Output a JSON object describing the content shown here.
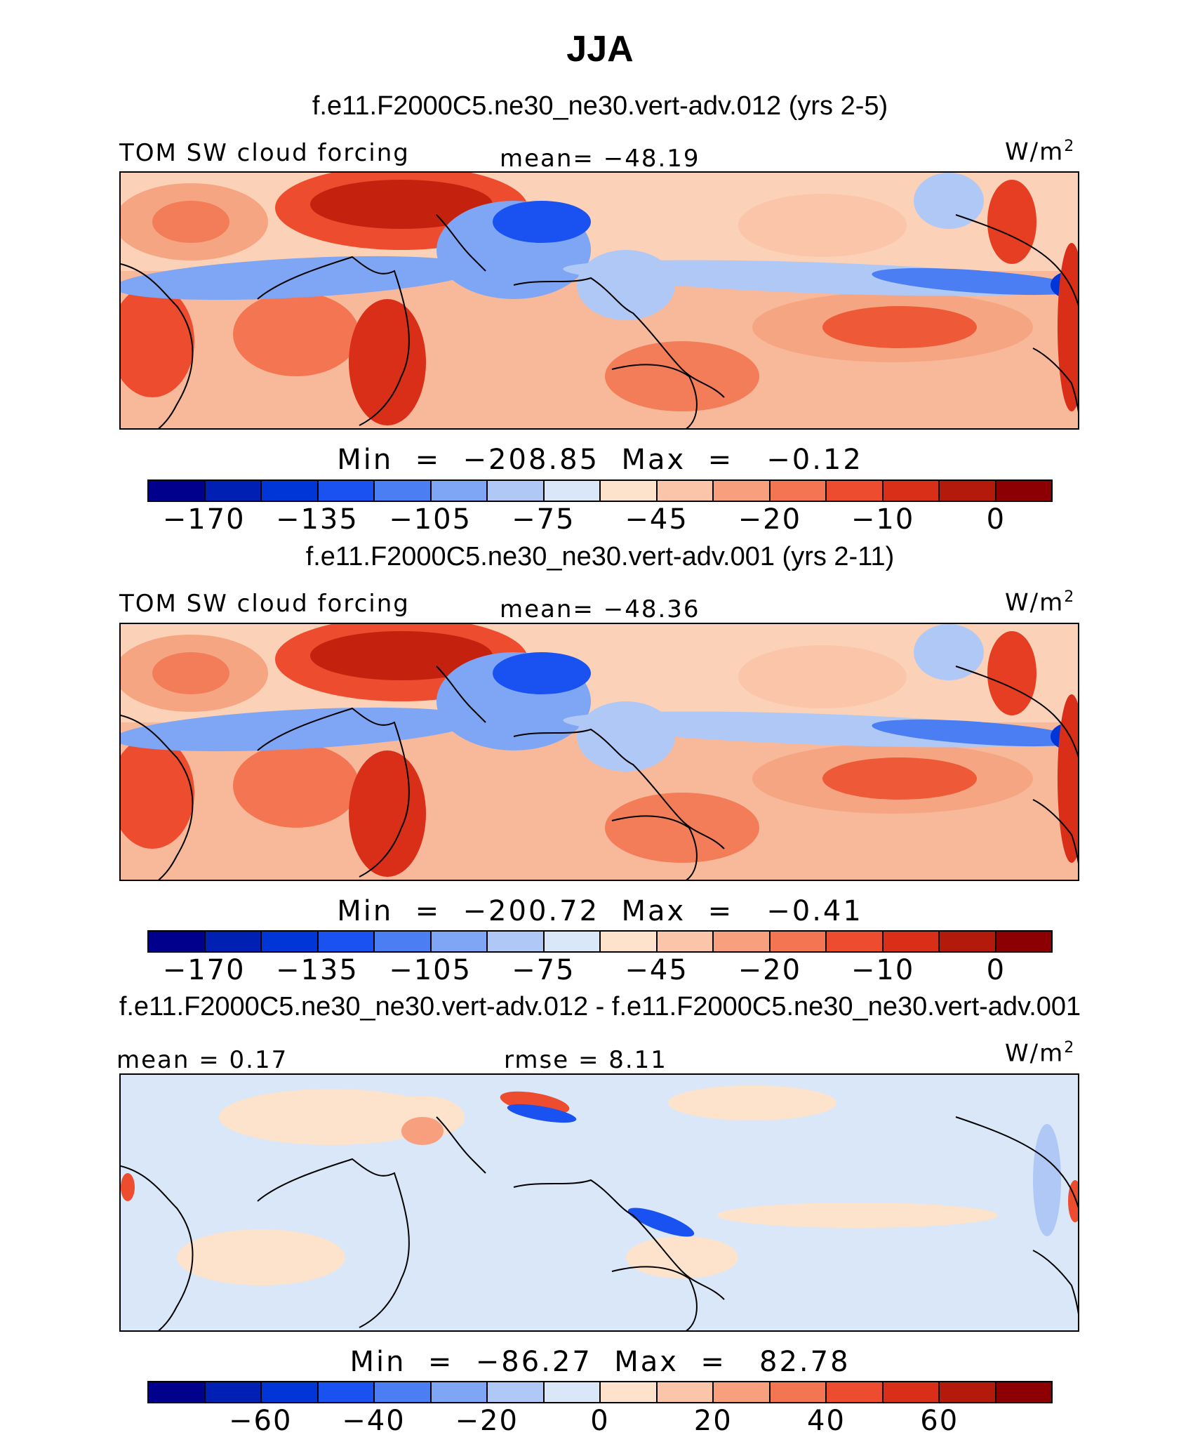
{
  "title": "JJA",
  "panels": [
    {
      "subtitle": "f.e11.F2000C5.ne30_ne30.vert-adv.012 (yrs 2-5)",
      "left_label": "TOM SW cloud forcing",
      "center_label": "mean= −48.19",
      "units": "W/m",
      "units_sup": "2",
      "minmax": "Min  =  −208.85  Max  =   −0.12",
      "type": "abs",
      "colorbar_ticks": [
        "−170",
        "−135",
        "−105",
        "−75",
        "−45",
        "−20",
        "−10",
        "0"
      ]
    },
    {
      "subtitle": "f.e11.F2000C5.ne30_ne30.vert-adv.001 (yrs 2-11)",
      "left_label": "TOM SW cloud forcing",
      "center_label": "mean= −48.36",
      "units": "W/m",
      "units_sup": "2",
      "minmax": "Min  =  −200.72  Max  =   −0.41",
      "type": "abs",
      "colorbar_ticks": [
        "−170",
        "−135",
        "−105",
        "−75",
        "−45",
        "−20",
        "−10",
        "0"
      ]
    },
    {
      "subtitle": "f.e11.F2000C5.ne30_ne30.vert-adv.012 - f.e11.F2000C5.ne30_ne30.vert-adv.001",
      "left_label": "mean =    0.17",
      "center_label": "rmse =    8.11",
      "units": "W/m",
      "units_sup": "2",
      "minmax": "Min  =  −86.27  Max  =   82.78",
      "type": "diff",
      "colorbar_ticks": [
        "−60",
        "−40",
        "−20",
        "0",
        "20",
        "40",
        "60"
      ]
    }
  ],
  "colors": {
    "abs_bar": [
      "#00008c",
      "#0020b4",
      "#0036d8",
      "#1a52f2",
      "#4a7ef2",
      "#7ea6f4",
      "#b0c8f6",
      "#d9e7f9",
      "#fde3cc",
      "#fbc5aa",
      "#f8a07e",
      "#f47552",
      "#ee4c2e",
      "#d92e18",
      "#b41a0c",
      "#8c0004"
    ],
    "diff_bar": [
      "#00008c",
      "#0020b4",
      "#0036d8",
      "#1a52f2",
      "#4a7ef2",
      "#7ea6f4",
      "#b0c8f6",
      "#d9e7f9",
      "#fde3cc",
      "#fbc5aa",
      "#f8a07e",
      "#f47552",
      "#ee4c2e",
      "#d92e18",
      "#b41a0c",
      "#8c0004"
    ]
  }
}
